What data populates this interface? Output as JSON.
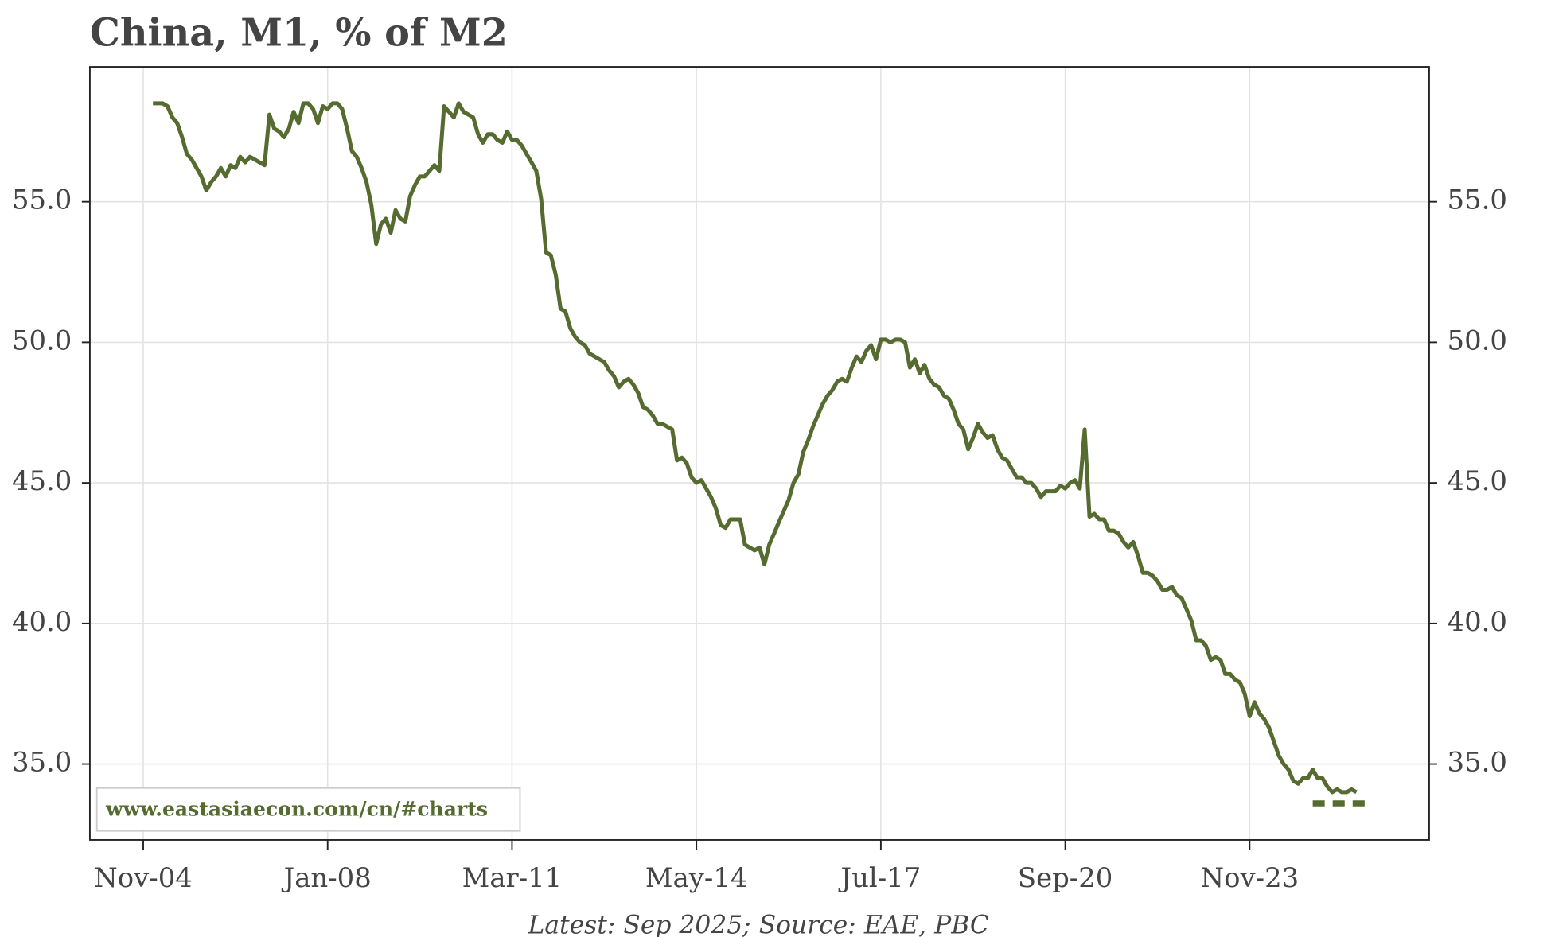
{
  "chart_data": {
    "type": "line",
    "title": "China, M1, % of M2",
    "footer": "Latest: Sep 2025; Source: EAE, PBC",
    "watermark": "www.eastasiaecon.com/cn/#charts",
    "x": [
      "2005-01",
      "2005-02",
      "2005-03",
      "2005-04",
      "2005-05",
      "2005-06",
      "2005-07",
      "2005-08",
      "2005-09",
      "2005-10",
      "2005-11",
      "2005-12",
      "2006-01",
      "2006-02",
      "2006-03",
      "2006-04",
      "2006-05",
      "2006-06",
      "2006-07",
      "2006-08",
      "2006-09",
      "2006-10",
      "2006-11",
      "2006-12",
      "2007-01",
      "2007-02",
      "2007-03",
      "2007-04",
      "2007-05",
      "2007-06",
      "2007-07",
      "2007-08",
      "2007-09",
      "2007-10",
      "2007-11",
      "2007-12",
      "2008-01",
      "2008-02",
      "2008-03",
      "2008-04",
      "2008-05",
      "2008-06",
      "2008-07",
      "2008-08",
      "2008-09",
      "2008-10",
      "2008-11",
      "2008-12",
      "2009-01",
      "2009-02",
      "2009-03",
      "2009-04",
      "2009-05",
      "2009-06",
      "2009-07",
      "2009-08",
      "2009-09",
      "2009-10",
      "2009-11",
      "2009-12",
      "2010-01",
      "2010-02",
      "2010-03",
      "2010-04",
      "2010-05",
      "2010-06",
      "2010-07",
      "2010-08",
      "2010-09",
      "2010-10",
      "2010-11",
      "2010-12",
      "2011-01",
      "2011-02",
      "2011-03",
      "2011-04",
      "2011-05",
      "2011-06",
      "2011-07",
      "2011-08",
      "2011-09",
      "2011-10",
      "2011-11",
      "2011-12",
      "2012-01",
      "2012-02",
      "2012-03",
      "2012-04",
      "2012-05",
      "2012-06",
      "2012-07",
      "2012-08",
      "2012-09",
      "2012-10",
      "2012-11",
      "2012-12",
      "2013-01",
      "2013-02",
      "2013-03",
      "2013-04",
      "2013-05",
      "2013-06",
      "2013-07",
      "2013-08",
      "2013-09",
      "2013-10",
      "2013-11",
      "2013-12",
      "2014-01",
      "2014-02",
      "2014-03",
      "2014-04",
      "2014-05",
      "2014-06",
      "2014-07",
      "2014-08",
      "2014-09",
      "2014-10",
      "2014-11",
      "2014-12",
      "2015-01",
      "2015-02",
      "2015-03",
      "2015-04",
      "2015-05",
      "2015-06",
      "2015-07",
      "2015-08",
      "2015-09",
      "2015-10",
      "2015-11",
      "2015-12",
      "2016-01",
      "2016-02",
      "2016-03",
      "2016-04",
      "2016-05",
      "2016-06",
      "2016-07",
      "2016-08",
      "2016-09",
      "2016-10",
      "2016-11",
      "2016-12",
      "2017-01",
      "2017-02",
      "2017-03",
      "2017-04",
      "2017-05",
      "2017-06",
      "2017-07",
      "2017-08",
      "2017-09",
      "2017-10",
      "2017-11",
      "2017-12",
      "2018-01",
      "2018-02",
      "2018-03",
      "2018-04",
      "2018-05",
      "2018-06",
      "2018-07",
      "2018-08",
      "2018-09",
      "2018-10",
      "2018-11",
      "2018-12",
      "2019-01",
      "2019-02",
      "2019-03",
      "2019-04",
      "2019-05",
      "2019-06",
      "2019-07",
      "2019-08",
      "2019-09",
      "2019-10",
      "2019-11",
      "2019-12",
      "2020-01",
      "2020-02",
      "2020-03",
      "2020-04",
      "2020-05",
      "2020-06",
      "2020-07",
      "2020-08",
      "2020-09",
      "2020-10",
      "2020-11",
      "2020-12",
      "2021-01",
      "2021-02",
      "2021-03",
      "2021-04",
      "2021-05",
      "2021-06",
      "2021-07",
      "2021-08",
      "2021-09",
      "2021-10",
      "2021-11",
      "2021-12",
      "2022-01",
      "2022-02",
      "2022-03",
      "2022-04",
      "2022-05",
      "2022-06",
      "2022-07",
      "2022-08",
      "2022-09",
      "2022-10",
      "2022-11",
      "2022-12",
      "2023-01",
      "2023-02",
      "2023-03",
      "2023-04",
      "2023-05",
      "2023-06",
      "2023-07",
      "2023-08",
      "2023-09",
      "2023-10",
      "2023-11",
      "2023-12",
      "2024-01",
      "2024-02",
      "2024-03",
      "2024-04",
      "2024-05",
      "2024-06",
      "2024-07",
      "2024-08",
      "2024-09",
      "2024-10",
      "2024-11",
      "2024-12",
      "2025-01",
      "2025-02",
      "2025-03",
      "2025-04",
      "2025-05",
      "2025-06",
      "2025-07",
      "2025-08",
      "2025-09"
    ],
    "series": [
      {
        "color": "#566b30",
        "values": [
          58.5,
          58.5,
          58.5,
          58.4,
          58.0,
          57.8,
          57.3,
          56.7,
          56.5,
          56.2,
          55.9,
          55.4,
          55.7,
          55.9,
          56.2,
          55.9,
          56.3,
          56.2,
          56.6,
          56.4,
          56.6,
          56.5,
          56.4,
          56.3,
          58.1,
          57.6,
          57.5,
          57.3,
          57.6,
          58.2,
          57.8,
          58.5,
          58.5,
          58.3,
          57.8,
          58.4,
          58.3,
          58.5,
          58.5,
          58.3,
          57.6,
          56.8,
          56.6,
          56.2,
          55.7,
          54.9,
          53.5,
          54.2,
          54.4,
          53.9,
          54.7,
          54.4,
          54.3,
          55.2,
          55.6,
          55.9,
          55.9,
          56.1,
          56.3,
          56.1,
          58.4,
          58.2,
          58.0,
          58.5,
          58.2,
          58.1,
          58.0,
          57.4,
          57.1,
          57.4,
          57.4,
          57.2,
          57.1,
          57.5,
          57.2,
          57.2,
          57.0,
          56.7,
          56.4,
          56.1,
          55.1,
          53.2,
          53.1,
          52.4,
          51.2,
          51.1,
          50.5,
          50.2,
          50.0,
          49.9,
          49.6,
          49.5,
          49.4,
          49.3,
          49.0,
          48.8,
          48.4,
          48.6,
          48.7,
          48.5,
          48.2,
          47.7,
          47.6,
          47.4,
          47.1,
          47.1,
          47.0,
          46.9,
          45.8,
          45.9,
          45.7,
          45.2,
          45.0,
          45.1,
          44.8,
          44.5,
          44.1,
          43.5,
          43.4,
          43.7,
          43.7,
          43.7,
          42.8,
          42.7,
          42.6,
          42.7,
          42.1,
          42.8,
          43.2,
          43.6,
          44.0,
          44.4,
          45.0,
          45.3,
          46.1,
          46.5,
          47.0,
          47.4,
          47.8,
          48.1,
          48.3,
          48.6,
          48.7,
          48.6,
          49.1,
          49.5,
          49.3,
          49.7,
          49.9,
          49.4,
          50.1,
          50.1,
          50.0,
          50.1,
          50.1,
          50.0,
          49.1,
          49.4,
          48.9,
          49.2,
          48.7,
          48.5,
          48.4,
          48.1,
          48.0,
          47.6,
          47.1,
          46.9,
          46.2,
          46.6,
          47.1,
          46.8,
          46.6,
          46.7,
          46.2,
          45.9,
          45.8,
          45.5,
          45.2,
          45.2,
          45.0,
          45.0,
          44.8,
          44.5,
          44.7,
          44.7,
          44.7,
          44.9,
          44.8,
          45.0,
          45.1,
          44.8,
          46.9,
          43.8,
          43.9,
          43.7,
          43.7,
          43.3,
          43.3,
          43.2,
          42.9,
          42.7,
          42.9,
          42.4,
          41.8,
          41.8,
          41.7,
          41.5,
          41.2,
          41.2,
          41.3,
          41.0,
          40.9,
          40.5,
          40.1,
          39.4,
          39.4,
          39.2,
          38.7,
          38.8,
          38.7,
          38.2,
          38.2,
          38.0,
          37.9,
          37.5,
          36.7,
          37.2,
          36.8,
          36.6,
          36.3,
          35.8,
          35.3,
          35.0,
          34.8,
          34.4,
          34.3,
          34.5,
          34.5,
          34.8,
          34.5,
          34.5,
          34.2,
          34.0,
          34.1,
          34.0,
          34.0,
          34.1,
          34.0
        ]
      }
    ],
    "dashed_line": {
      "x": [
        "2024-12",
        "2025-11"
      ],
      "values": [
        33.6,
        33.6
      ],
      "color": "#566b30"
    },
    "xlim": [
      "2003-12",
      "2026-12"
    ],
    "xticks": [
      {
        "value": "2004-11",
        "label": "Nov-04"
      },
      {
        "value": "2008-01",
        "label": "Jan-08"
      },
      {
        "value": "2011-03",
        "label": "Mar-11"
      },
      {
        "value": "2014-05",
        "label": "May-14"
      },
      {
        "value": "2017-07",
        "label": "Jul-17"
      },
      {
        "value": "2020-09",
        "label": "Sep-20"
      },
      {
        "value": "2023-11",
        "label": "Nov-23"
      }
    ],
    "ylim": [
      32.3,
      59.8
    ],
    "yticks": [
      {
        "value": 35,
        "label": "35.0"
      },
      {
        "value": 40,
        "label": "40.0"
      },
      {
        "value": 45,
        "label": "45.0"
      },
      {
        "value": 50,
        "label": "50.0"
      },
      {
        "value": 55,
        "label": "55.0"
      }
    ],
    "grid": true,
    "right_axis_labels": true
  }
}
